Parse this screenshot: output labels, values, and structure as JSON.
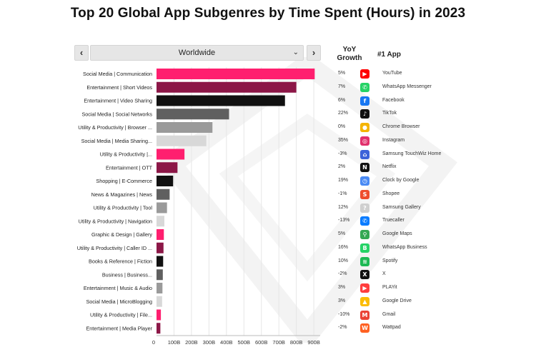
{
  "title": "Top 20 Global App Subgenres by Time Spent (Hours) in 2023",
  "controls": {
    "prev_label": "‹",
    "next_label": "›",
    "region": "Worldwide",
    "dropdown_icon": "chevron-down-icon"
  },
  "headers": {
    "growth_line1": "YoY",
    "growth_line2": "Growth",
    "app": "#1 App"
  },
  "colors": {
    "pink": "#ff1f6f",
    "maroon": "#8c1747",
    "black": "#111111",
    "dark_gray": "#606060",
    "mid_gray": "#9a9a9a",
    "light_gray": "#d8d8d8"
  },
  "chart_data": {
    "type": "bar",
    "orientation": "horizontal",
    "categories": [
      "Social Media | Communication",
      "Entertainment | Short Videos",
      "Entertainment | Video Sharing",
      "Social Media | Social Networks",
      "Utility & Productivity | Browser ...",
      "Social Media | Media Sharing...",
      "Utility & Productivity |...",
      "Entertainment | OTT",
      "Shopping | E-Commerce",
      "News & Magazines | News",
      "Utility & Productivity | Tool",
      "Utility & Productivity | Navigation",
      "Graphic & Design | Gallery",
      "Utility & Productivity | Caller ID ...",
      "Books & Reference | Fiction",
      "Business | Business...",
      "Entertainment | Music & Audio",
      "Social Media | MicroBlogging",
      "Utility & Productivity | File...",
      "Entertainment | Media Player"
    ],
    "values": [
      905,
      800,
      735,
      415,
      320,
      285,
      160,
      120,
      95,
      75,
      60,
      45,
      42,
      40,
      38,
      36,
      34,
      32,
      25,
      22
    ],
    "bar_colors": [
      "pink",
      "maroon",
      "black",
      "dark_gray",
      "mid_gray",
      "light_gray",
      "pink",
      "maroon",
      "black",
      "dark_gray",
      "mid_gray",
      "light_gray",
      "pink",
      "maroon",
      "black",
      "dark_gray",
      "mid_gray",
      "light_gray",
      "pink",
      "maroon"
    ],
    "x_ticks": [
      "0",
      "100B",
      "200B",
      "300B",
      "400B",
      "500B",
      "600B",
      "700B",
      "800B",
      "900B"
    ],
    "x_tick_values": [
      0,
      100,
      200,
      300,
      400,
      500,
      600,
      700,
      800,
      900
    ],
    "xlim": [
      0,
      920
    ],
    "grid": "vertical",
    "yoy_growth": [
      "5%",
      "7%",
      "6%",
      "22%",
      "0%",
      "35%",
      "-3%",
      "2%",
      "19%",
      "-1%",
      "12%",
      "-13%",
      "5%",
      "16%",
      "10%",
      "-2%",
      "3%",
      "3%",
      "-10%",
      "-2%"
    ],
    "top_apps": [
      {
        "name": "YouTube",
        "icon": "youtube-icon",
        "color": "#ff0000",
        "glyph": "▶"
      },
      {
        "name": "WhatsApp Messenger",
        "icon": "whatsapp-icon",
        "color": "#25d366",
        "glyph": "✆"
      },
      {
        "name": "Facebook",
        "icon": "facebook-icon",
        "color": "#1877f2",
        "glyph": "f"
      },
      {
        "name": "TikTok",
        "icon": "tiktok-icon",
        "color": "#111111",
        "glyph": "♪"
      },
      {
        "name": "Chrome Browser",
        "icon": "chrome-icon",
        "color": "#f4b400",
        "glyph": "●"
      },
      {
        "name": "Instagram",
        "icon": "instagram-icon",
        "color": "#e1306c",
        "glyph": "◎"
      },
      {
        "name": "Samsung TouchWiz Home",
        "icon": "samsung-home-icon",
        "color": "#3d63d9",
        "glyph": "⌂"
      },
      {
        "name": "Netflix",
        "icon": "netflix-icon",
        "color": "#111111",
        "glyph": "N"
      },
      {
        "name": "Clock by Google",
        "icon": "clock-icon",
        "color": "#4a8af4",
        "glyph": "◷"
      },
      {
        "name": "Shopee",
        "icon": "shopee-icon",
        "color": "#ee4d2d",
        "glyph": "S"
      },
      {
        "name": "Samsung Gallery",
        "icon": "gallery-icon",
        "color": "#cfcfcf",
        "glyph": "?"
      },
      {
        "name": "Truecaller",
        "icon": "truecaller-icon",
        "color": "#0a7cff",
        "glyph": "✆"
      },
      {
        "name": "Google Maps",
        "icon": "maps-icon",
        "color": "#34a853",
        "glyph": "⚲"
      },
      {
        "name": "WhatsApp Business",
        "icon": "whatsapp-business-icon",
        "color": "#25d366",
        "glyph": "B"
      },
      {
        "name": "Spotify",
        "icon": "spotify-icon",
        "color": "#1db954",
        "glyph": "≋"
      },
      {
        "name": "X",
        "icon": "x-icon",
        "color": "#111111",
        "glyph": "X"
      },
      {
        "name": "PLAYit",
        "icon": "playit-icon",
        "color": "#ff3d3d",
        "glyph": "▶"
      },
      {
        "name": "Google Drive",
        "icon": "drive-icon",
        "color": "#fbbc04",
        "glyph": "▲"
      },
      {
        "name": "Gmail",
        "icon": "gmail-icon",
        "color": "#ea4335",
        "glyph": "M"
      },
      {
        "name": "Wattpad",
        "icon": "wattpad-icon",
        "color": "#ff6122",
        "glyph": "W"
      }
    ]
  }
}
